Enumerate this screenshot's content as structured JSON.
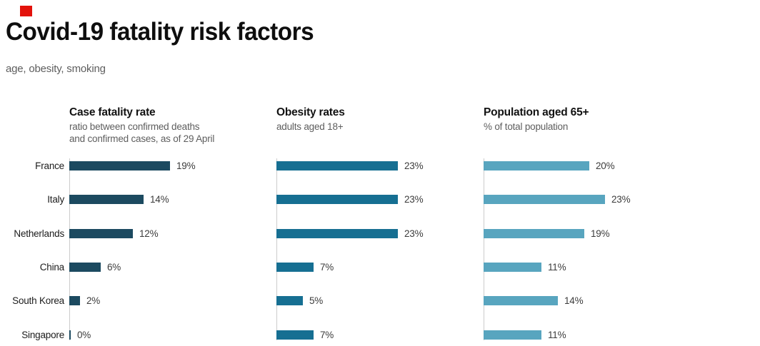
{
  "brand": {
    "accent_color": "#e3120b"
  },
  "header": {
    "title": "Covid-19 fatality risk factors",
    "subtitle": "age, obesity, smoking"
  },
  "chart_data": {
    "type": "bar",
    "orientation": "horizontal",
    "categories": [
      "France",
      "Italy",
      "Netherlands",
      "China",
      "South Korea",
      "Singapore"
    ],
    "panels": [
      {
        "title": "Case fatality rate",
        "subtitle_lines": [
          "ratio between confirmed deaths",
          "and confirmed cases, as of 29 April"
        ],
        "values": [
          19,
          14,
          12,
          6,
          2,
          0
        ],
        "value_labels": [
          "19%",
          "14%",
          "12%",
          "6%",
          "2%",
          "0%"
        ],
        "bar_color": "#1c4a60"
      },
      {
        "title": "Obesity rates",
        "subtitle_lines": [
          "adults aged 18+"
        ],
        "values": [
          23,
          23,
          23,
          7,
          5,
          7
        ],
        "value_labels": [
          "23%",
          "23%",
          "23%",
          "7%",
          "5%",
          "7%"
        ],
        "bar_color": "#166f92"
      },
      {
        "title": "Population aged 65+",
        "subtitle_lines": [
          "% of total population"
        ],
        "values": [
          20,
          23,
          19,
          11,
          14,
          11
        ],
        "value_labels": [
          "20%",
          "23%",
          "19%",
          "11%",
          "14%",
          "11%"
        ],
        "bar_color": "#58a5bf"
      }
    ],
    "unit": "%",
    "xlim": [
      0,
      25
    ],
    "grid": false,
    "legend": false,
    "axis_color": "#cccccc"
  }
}
